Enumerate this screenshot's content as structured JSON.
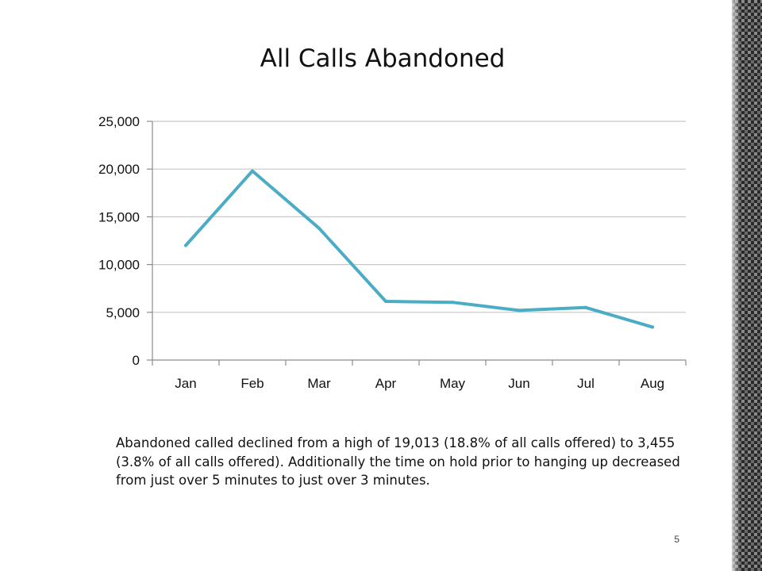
{
  "slide": {
    "title": "All Calls Abandoned",
    "caption": "Abandoned called declined from a high of 19,013 (18.8% of all calls offered) to 3,455 (3.8% of all calls offered).  Additionally the time on hold prior to hanging up decreased from just over 5 minutes to just over 3 minutes.",
    "page_number": "5"
  },
  "chart_data": {
    "type": "line",
    "title": "All Calls Abandoned",
    "xlabel": "",
    "ylabel": "",
    "categories": [
      "Jan",
      "Feb",
      "Mar",
      "Apr",
      "May",
      "Jun",
      "Jul",
      "Aug"
    ],
    "series": [
      {
        "values": [
          12000,
          19800,
          13800,
          6150,
          6050,
          5200,
          5500,
          3455
        ]
      }
    ],
    "ylim": [
      0,
      25000
    ],
    "yticks": [
      0,
      5000,
      10000,
      15000,
      20000,
      25000
    ],
    "ytick_labels": [
      "0",
      "5,000",
      "10,000",
      "15,000",
      "20,000",
      "25,000"
    ],
    "grid": true,
    "legend": "none",
    "line_color": "#4BACC6"
  }
}
